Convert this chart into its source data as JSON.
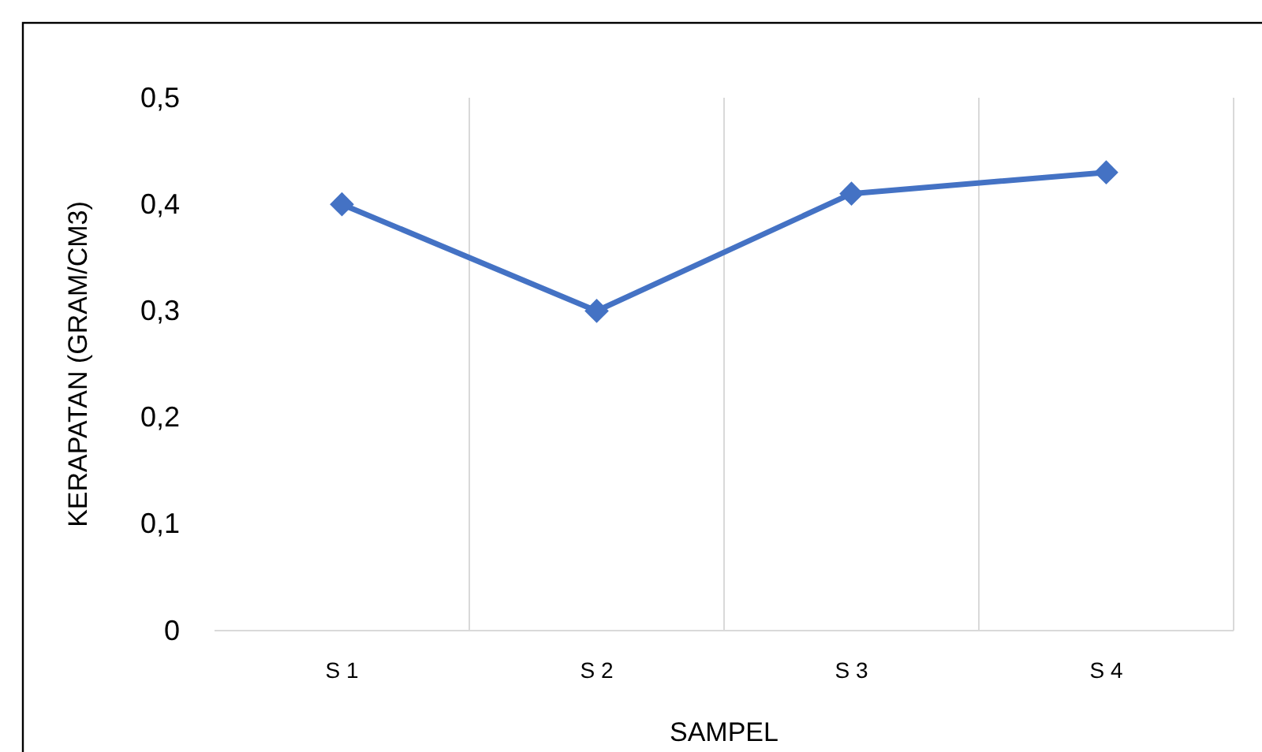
{
  "chart_data": {
    "type": "line",
    "xlabel": "SAMPEL",
    "ylabel": "KERAPATAN (GRAM/CM3)",
    "categories": [
      "S 1",
      "S 2",
      "S 3",
      "S 4"
    ],
    "series": [
      {
        "color": "#4472c4",
        "values": [
          0.4,
          0.3,
          0.41,
          0.43
        ]
      }
    ],
    "ylim": [
      0,
      0.5
    ],
    "yticks": [
      0,
      {
        "value": 0.1,
        "label": "0,1"
      },
      {
        "value": 0.2,
        "label": "0,2"
      },
      {
        "value": 0.3,
        "label": "0,3"
      },
      {
        "value": 0.4,
        "label": "0,4"
      },
      {
        "value": 0.5,
        "label": "0,5"
      }
    ],
    "grid": "x",
    "marker": "diamond",
    "line_style": "solid"
  }
}
